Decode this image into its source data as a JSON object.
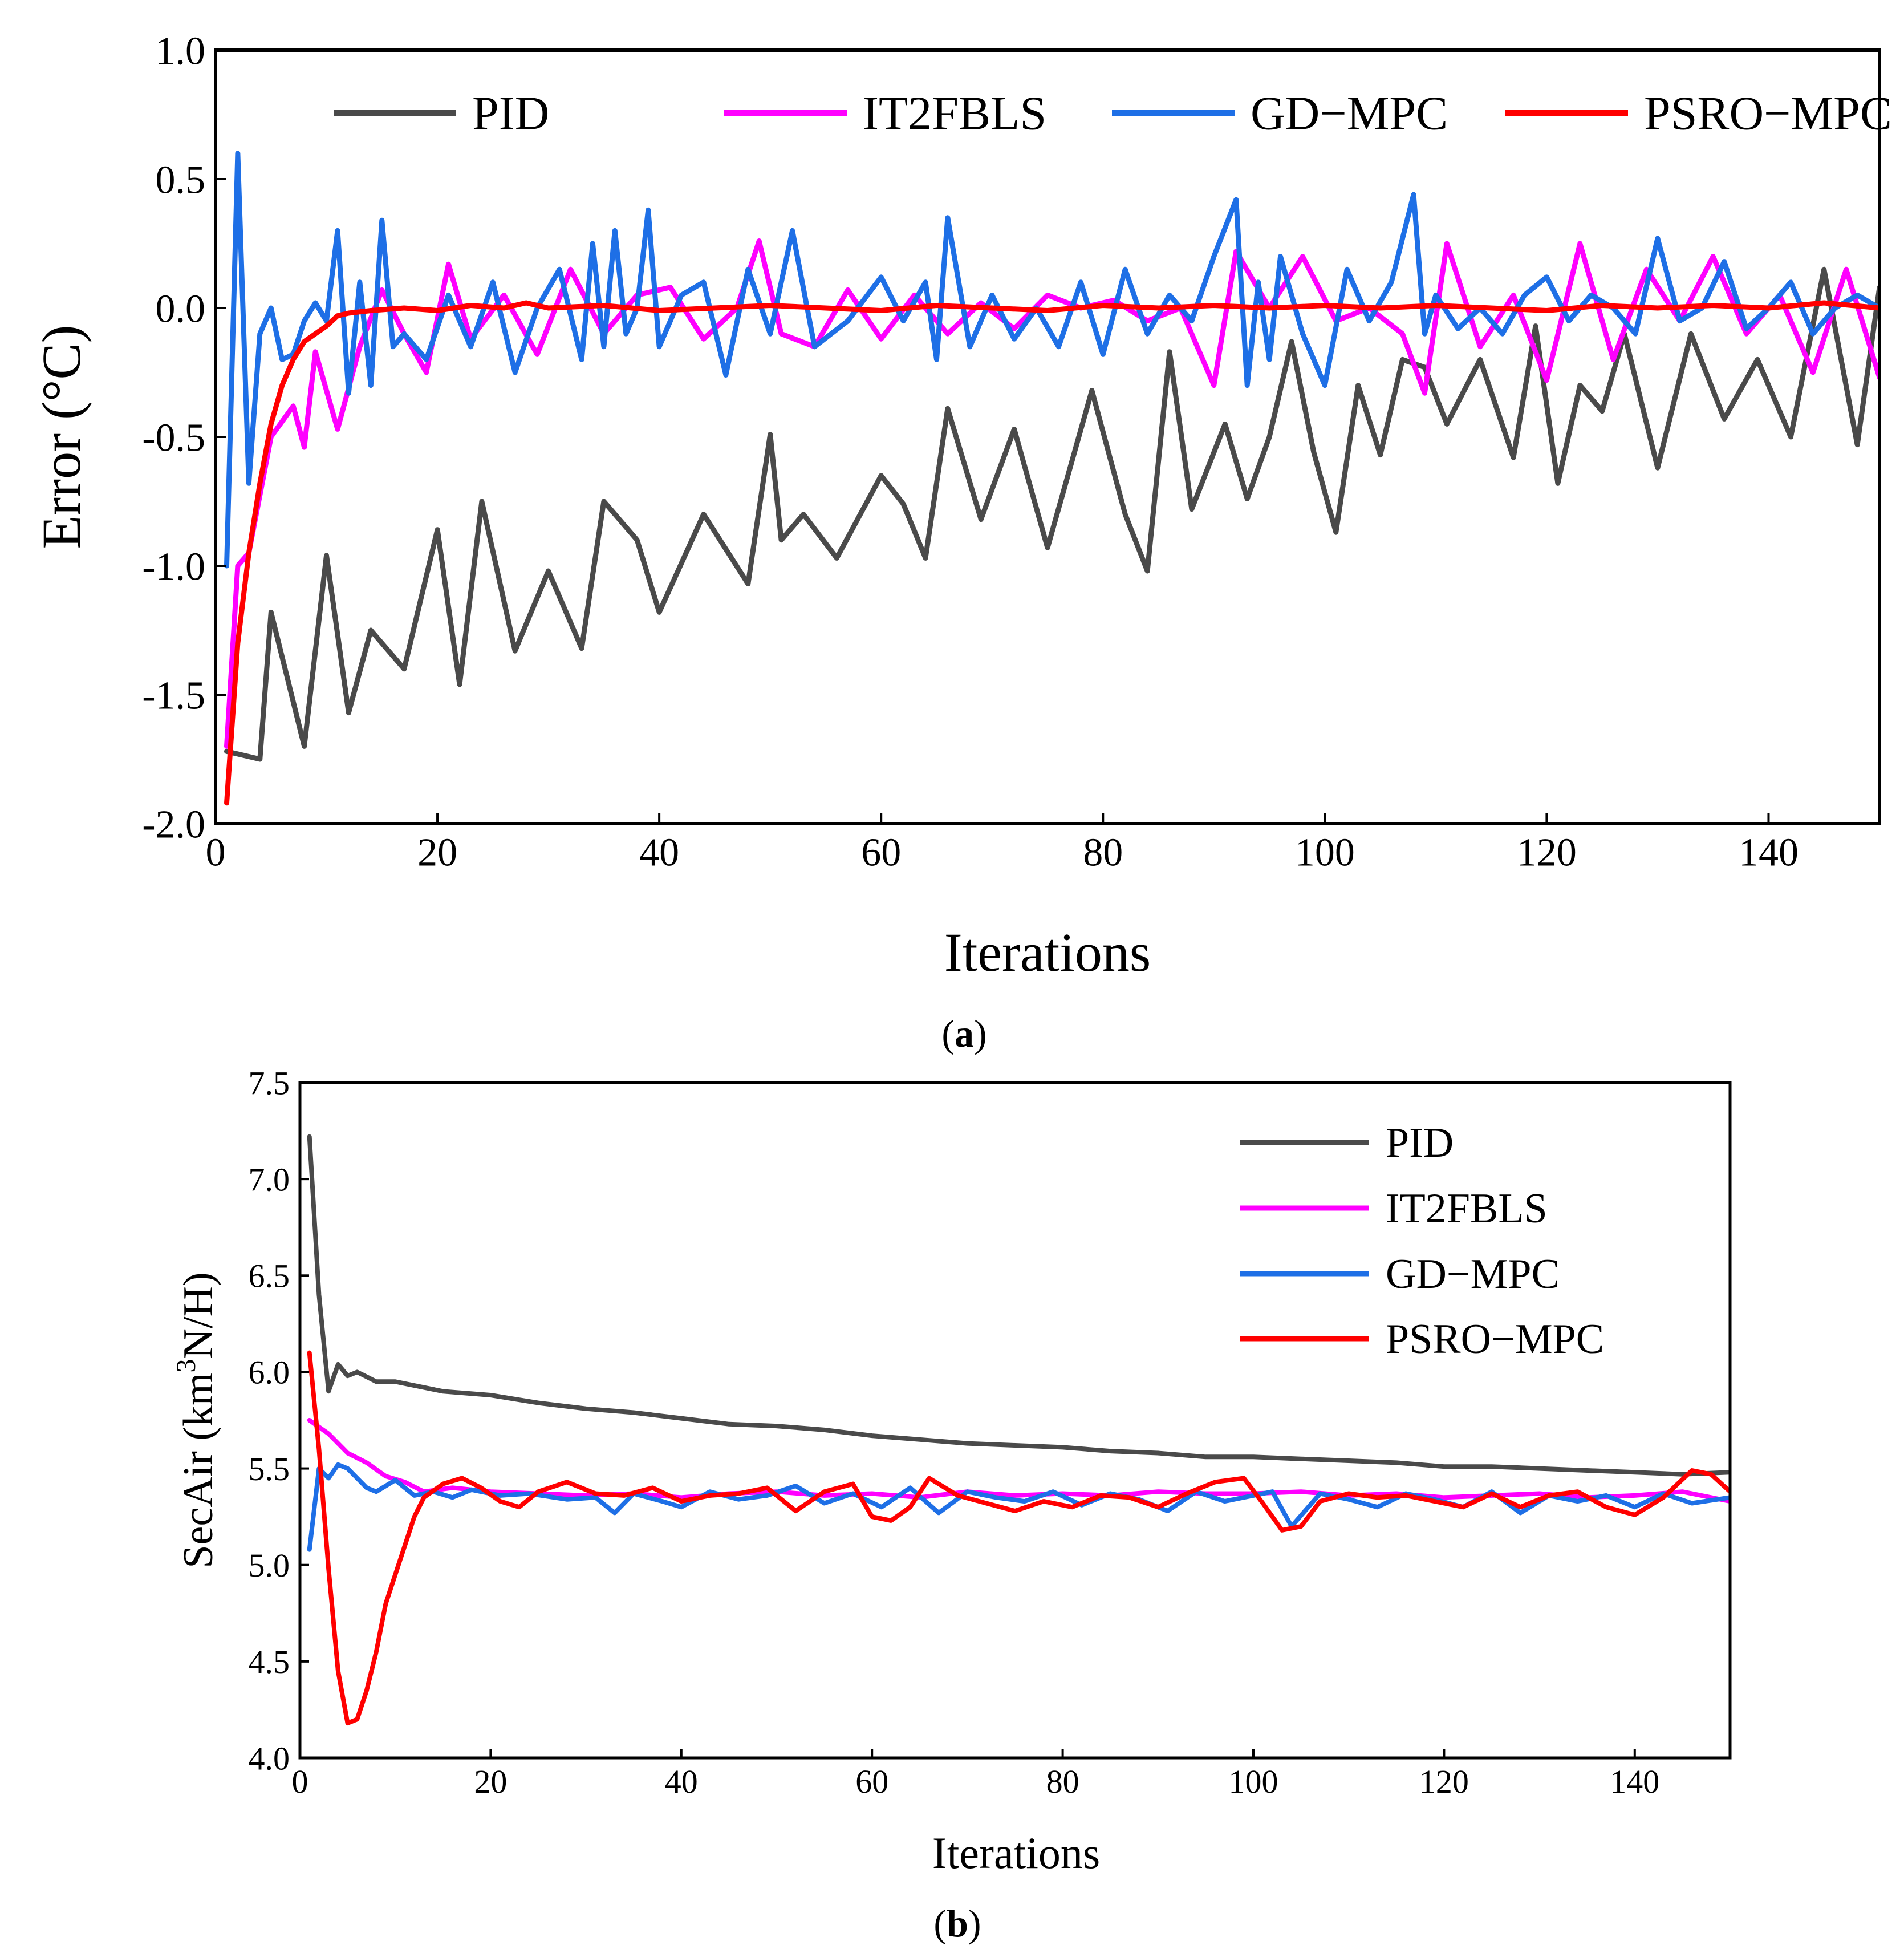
{
  "chart_data": [
    {
      "type": "line",
      "id": "a",
      "title": "",
      "caption_letter": "a",
      "xlabel": "Iterations",
      "ylabel": "Error (°C)",
      "xlim": [
        0,
        150
      ],
      "ylim": [
        -2.0,
        1.0
      ],
      "xticks": [
        "0",
        "20",
        "40",
        "60",
        "80",
        "100",
        "120",
        "140"
      ],
      "xtick_values": [
        0,
        20,
        40,
        60,
        80,
        100,
        120,
        140
      ],
      "yticks": [
        "1.0",
        "0.5",
        "0.0",
        "-0.5",
        "-1.0",
        "-1.5",
        "-2.0"
      ],
      "ytick_values": [
        1.0,
        0.5,
        0.0,
        -0.5,
        -1.0,
        -1.5,
        -2.0
      ],
      "grid": false,
      "legend_position": "top, single row",
      "series": [
        {
          "name": "PID",
          "color": "#4a4a4a",
          "x": [
            1,
            4,
            5,
            8,
            10,
            12,
            14,
            17,
            20,
            22,
            24,
            27,
            30,
            33,
            35,
            38,
            40,
            44,
            48,
            50,
            51,
            53,
            56,
            60,
            62,
            64,
            66,
            69,
            72,
            75,
            79,
            82,
            84,
            86,
            88,
            91,
            93,
            95,
            97,
            99,
            101,
            103,
            105,
            107,
            109,
            111,
            114,
            117,
            119,
            121,
            123,
            125,
            127,
            130,
            133,
            136,
            139,
            142,
            145,
            148,
            150
          ],
          "y": [
            -1.72,
            -1.75,
            -1.18,
            -1.7,
            -0.96,
            -1.57,
            -1.25,
            -1.4,
            -0.86,
            -1.46,
            -0.75,
            -1.33,
            -1.02,
            -1.32,
            -0.75,
            -0.9,
            -1.18,
            -0.8,
            -1.07,
            -0.49,
            -0.9,
            -0.8,
            -0.97,
            -0.65,
            -0.76,
            -0.97,
            -0.39,
            -0.82,
            -0.47,
            -0.93,
            -0.32,
            -0.8,
            -1.02,
            -0.17,
            -0.78,
            -0.45,
            -0.74,
            -0.5,
            -0.13,
            -0.56,
            -0.87,
            -0.3,
            -0.57,
            -0.2,
            -0.23,
            -0.45,
            -0.2,
            -0.58,
            -0.07,
            -0.68,
            -0.3,
            -0.4,
            -0.1,
            -0.62,
            -0.1,
            -0.43,
            -0.2,
            -0.5,
            0.15,
            -0.53,
            0.08
          ]
        },
        {
          "name": "IT2FBLS",
          "color": "#ff00ff",
          "x": [
            1,
            2,
            3,
            5,
            7,
            8,
            9,
            11,
            13,
            15,
            17,
            19,
            21,
            23,
            26,
            29,
            32,
            35,
            38,
            41,
            44,
            47,
            49,
            51,
            54,
            57,
            60,
            63,
            66,
            69,
            72,
            75,
            78,
            81,
            84,
            87,
            90,
            92,
            95,
            98,
            101,
            104,
            107,
            109,
            111,
            114,
            117,
            120,
            123,
            126,
            129,
            132,
            135,
            138,
            141,
            144,
            147,
            150
          ],
          "y": [
            -1.7,
            -1.0,
            -0.95,
            -0.5,
            -0.38,
            -0.54,
            -0.17,
            -0.47,
            -0.15,
            0.07,
            -0.1,
            -0.25,
            0.17,
            -0.12,
            0.05,
            -0.18,
            0.15,
            -0.1,
            0.05,
            0.08,
            -0.12,
            0.0,
            0.26,
            -0.1,
            -0.15,
            0.07,
            -0.12,
            0.05,
            -0.1,
            0.02,
            -0.08,
            0.05,
            0.0,
            0.03,
            -0.05,
            0.0,
            -0.3,
            0.22,
            0.0,
            0.2,
            -0.05,
            0.0,
            -0.1,
            -0.33,
            0.25,
            -0.15,
            0.05,
            -0.28,
            0.25,
            -0.2,
            0.15,
            -0.05,
            0.2,
            -0.1,
            0.05,
            -0.25,
            0.15,
            -0.27
          ]
        },
        {
          "name": "GD−MPC",
          "color": "#1e6fe6",
          "x": [
            1,
            2,
            3,
            4,
            5,
            6,
            7,
            8,
            9,
            10,
            11,
            12,
            13,
            14,
            15,
            16,
            17,
            19,
            21,
            23,
            25,
            27,
            29,
            31,
            33,
            34,
            35,
            36,
            37,
            38,
            39,
            40,
            42,
            44,
            46,
            48,
            50,
            52,
            54,
            57,
            60,
            62,
            64,
            65,
            66,
            68,
            70,
            72,
            74,
            76,
            78,
            80,
            82,
            84,
            86,
            88,
            90,
            92,
            93,
            94,
            95,
            96,
            98,
            100,
            102,
            104,
            106,
            108,
            109,
            110,
            112,
            114,
            116,
            118,
            120,
            122,
            124,
            126,
            128,
            130,
            132,
            134,
            136,
            138,
            140,
            142,
            144,
            146,
            148,
            150
          ],
          "y": [
            -1.0,
            0.6,
            -0.68,
            -0.1,
            0.0,
            -0.2,
            -0.18,
            -0.05,
            0.02,
            -0.05,
            0.3,
            -0.33,
            0.1,
            -0.3,
            0.34,
            -0.15,
            -0.1,
            -0.2,
            0.05,
            -0.15,
            0.1,
            -0.25,
            0.0,
            0.15,
            -0.2,
            0.25,
            -0.15,
            0.3,
            -0.1,
            0.0,
            0.38,
            -0.15,
            0.05,
            0.1,
            -0.26,
            0.15,
            -0.1,
            0.3,
            -0.15,
            -0.05,
            0.12,
            -0.05,
            0.1,
            -0.2,
            0.35,
            -0.15,
            0.05,
            -0.12,
            0.0,
            -0.15,
            0.1,
            -0.18,
            0.15,
            -0.1,
            0.05,
            -0.05,
            0.2,
            0.42,
            -0.3,
            0.1,
            -0.2,
            0.2,
            -0.1,
            -0.3,
            0.15,
            -0.05,
            0.1,
            0.44,
            -0.1,
            0.05,
            -0.08,
            0.0,
            -0.1,
            0.05,
            0.12,
            -0.05,
            0.05,
            0.0,
            -0.1,
            0.27,
            -0.05,
            0.0,
            0.18,
            -0.08,
            0.0,
            0.1,
            -0.1,
            0.0,
            0.05,
            0.0
          ]
        },
        {
          "name": "PSRO−MPC",
          "color": "#ff0000",
          "x": [
            1,
            2,
            3,
            4,
            5,
            6,
            7,
            8,
            9,
            10,
            11,
            12,
            14,
            17,
            20,
            23,
            26,
            28,
            30,
            35,
            40,
            45,
            50,
            55,
            60,
            65,
            70,
            75,
            80,
            85,
            90,
            95,
            100,
            105,
            110,
            115,
            120,
            125,
            130,
            135,
            140,
            145,
            150
          ],
          "y": [
            -1.92,
            -1.3,
            -0.95,
            -0.68,
            -0.45,
            -0.3,
            -0.2,
            -0.13,
            -0.1,
            -0.07,
            -0.03,
            -0.02,
            -0.01,
            0.0,
            -0.01,
            0.01,
            0.0,
            0.02,
            0.0,
            0.01,
            -0.01,
            0.0,
            0.01,
            0.0,
            -0.01,
            0.01,
            0.0,
            -0.01,
            0.01,
            0.0,
            0.01,
            0.0,
            0.01,
            0.0,
            0.01,
            0.0,
            -0.01,
            0.01,
            0.0,
            0.01,
            0.0,
            0.02,
            0.0
          ]
        }
      ]
    },
    {
      "type": "line",
      "id": "b",
      "title": "",
      "caption_letter": "b",
      "xlabel": "Iterations",
      "ylabel": "SecAir (km",
      "ylabel_sup": "3",
      "ylabel_tail": "N/H)",
      "xlim": [
        0,
        150
      ],
      "ylim": [
        4.0,
        7.5
      ],
      "xticks": [
        "0",
        "20",
        "40",
        "60",
        "80",
        "100",
        "120",
        "140"
      ],
      "xtick_values": [
        0,
        20,
        40,
        60,
        80,
        100,
        120,
        140
      ],
      "yticks": [
        "7.5",
        "7.0",
        "6.5",
        "6.0",
        "5.5",
        "5.0",
        "4.5",
        "4.0"
      ],
      "ytick_values": [
        7.5,
        7.0,
        6.5,
        6.0,
        5.5,
        5.0,
        4.5,
        4.0
      ],
      "grid": false,
      "legend_position": "top-right, stacked",
      "series": [
        {
          "name": "PID",
          "color": "#4a4a4a",
          "x": [
            1,
            2,
            3,
            4,
            5,
            6,
            8,
            10,
            15,
            20,
            25,
            30,
            35,
            40,
            45,
            50,
            55,
            60,
            65,
            70,
            75,
            80,
            85,
            90,
            95,
            100,
            105,
            110,
            115,
            120,
            125,
            130,
            135,
            140,
            145,
            150
          ],
          "y": [
            7.22,
            6.4,
            5.9,
            6.04,
            5.98,
            6.0,
            5.95,
            5.95,
            5.9,
            5.88,
            5.84,
            5.81,
            5.79,
            5.76,
            5.73,
            5.72,
            5.7,
            5.67,
            5.65,
            5.63,
            5.62,
            5.61,
            5.59,
            5.58,
            5.56,
            5.56,
            5.55,
            5.54,
            5.53,
            5.51,
            5.51,
            5.5,
            5.49,
            5.48,
            5.47,
            5.48
          ]
        },
        {
          "name": "IT2FBLS",
          "color": "#ff00ff",
          "x": [
            1,
            3,
            5,
            7,
            9,
            11,
            13,
            16,
            20,
            25,
            30,
            35,
            40,
            45,
            50,
            55,
            60,
            65,
            70,
            75,
            80,
            85,
            90,
            95,
            100,
            105,
            110,
            115,
            120,
            125,
            130,
            135,
            140,
            145,
            150
          ],
          "y": [
            5.75,
            5.68,
            5.58,
            5.53,
            5.46,
            5.43,
            5.38,
            5.4,
            5.38,
            5.37,
            5.36,
            5.37,
            5.35,
            5.37,
            5.38,
            5.36,
            5.37,
            5.35,
            5.38,
            5.36,
            5.37,
            5.36,
            5.38,
            5.37,
            5.37,
            5.38,
            5.36,
            5.37,
            5.35,
            5.36,
            5.37,
            5.35,
            5.36,
            5.38,
            5.33
          ]
        },
        {
          "name": "GD−MPC",
          "color": "#1e6fe6",
          "x": [
            1,
            2,
            3,
            4,
            5,
            6,
            7,
            8,
            10,
            12,
            14,
            16,
            18,
            21,
            24,
            28,
            31,
            33,
            35,
            38,
            40,
            43,
            46,
            49,
            52,
            55,
            58,
            61,
            64,
            67,
            70,
            73,
            76,
            79,
            82,
            85,
            88,
            91,
            94,
            97,
            100,
            102,
            104,
            107,
            110,
            113,
            116,
            119,
            122,
            125,
            128,
            131,
            134,
            137,
            140,
            143,
            146,
            150
          ],
          "y": [
            5.08,
            5.5,
            5.45,
            5.52,
            5.5,
            5.45,
            5.4,
            5.38,
            5.44,
            5.36,
            5.38,
            5.35,
            5.39,
            5.36,
            5.37,
            5.34,
            5.35,
            5.27,
            5.37,
            5.33,
            5.3,
            5.38,
            5.34,
            5.36,
            5.41,
            5.32,
            5.37,
            5.3,
            5.4,
            5.27,
            5.38,
            5.35,
            5.33,
            5.38,
            5.31,
            5.37,
            5.34,
            5.28,
            5.38,
            5.33,
            5.36,
            5.38,
            5.2,
            5.37,
            5.34,
            5.3,
            5.37,
            5.34,
            5.3,
            5.38,
            5.27,
            5.36,
            5.33,
            5.36,
            5.3,
            5.37,
            5.32,
            5.35
          ]
        },
        {
          "name": "PSRO−MPC",
          "color": "#ff0000",
          "x": [
            1,
            2,
            3,
            4,
            5,
            6,
            7,
            8,
            9,
            10,
            11,
            12,
            13,
            15,
            17,
            19,
            21,
            23,
            25,
            28,
            31,
            34,
            37,
            40,
            43,
            46,
            49,
            52,
            55,
            58,
            60,
            62,
            64,
            66,
            69,
            72,
            75,
            78,
            81,
            84,
            87,
            90,
            93,
            96,
            99,
            101,
            103,
            105,
            107,
            110,
            113,
            116,
            119,
            122,
            125,
            128,
            131,
            134,
            137,
            140,
            143,
            146,
            148,
            150
          ],
          "y": [
            6.1,
            5.6,
            4.98,
            4.45,
            4.18,
            4.2,
            4.35,
            4.55,
            4.8,
            4.95,
            5.1,
            5.25,
            5.35,
            5.42,
            5.45,
            5.4,
            5.33,
            5.3,
            5.38,
            5.43,
            5.37,
            5.36,
            5.4,
            5.33,
            5.36,
            5.37,
            5.4,
            5.28,
            5.38,
            5.42,
            5.25,
            5.23,
            5.3,
            5.45,
            5.36,
            5.32,
            5.28,
            5.33,
            5.3,
            5.36,
            5.35,
            5.3,
            5.37,
            5.43,
            5.45,
            5.32,
            5.18,
            5.2,
            5.33,
            5.37,
            5.35,
            5.36,
            5.33,
            5.3,
            5.37,
            5.3,
            5.36,
            5.38,
            5.3,
            5.26,
            5.35,
            5.49,
            5.47,
            5.38
          ]
        }
      ]
    }
  ]
}
